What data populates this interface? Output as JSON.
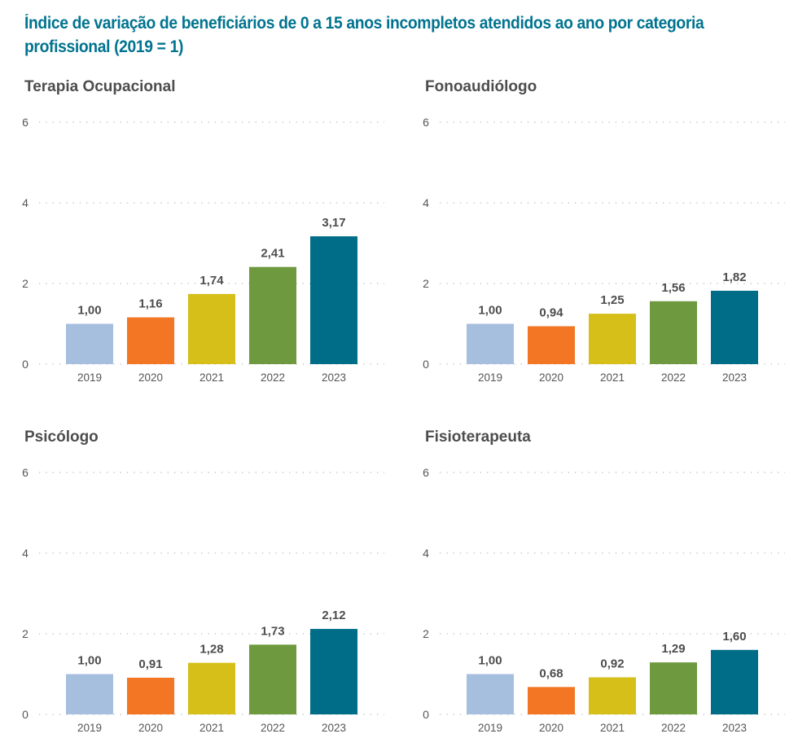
{
  "title": "Índice de variação de beneficiários de 0 a 15 anos incompletos atendidos ao ano por categoria profissional (2019 = 1)",
  "colors": {
    "2019": "#a6bfdf",
    "2020": "#f27623",
    "2021": "#d5bf18",
    "2022": "#6e993e",
    "2023": "#006d88",
    "title": "#00738f",
    "grid": "#bbbbbb"
  },
  "chart_data": [
    {
      "type": "bar",
      "title": "Terapia Ocupacional",
      "categories": [
        "2019",
        "2020",
        "2021",
        "2022",
        "2023"
      ],
      "values": [
        1.0,
        1.16,
        1.74,
        2.41,
        3.17
      ],
      "value_labels": [
        "1,00",
        "1,16",
        "1,74",
        "2,41",
        "3,17"
      ],
      "ylim": [
        0,
        6
      ],
      "yticks": [
        "0",
        "2",
        "4",
        "6"
      ],
      "grid": "dotted horizontal"
    },
    {
      "type": "bar",
      "title": "Fonoaudiólogo",
      "categories": [
        "2019",
        "2020",
        "2021",
        "2022",
        "2023"
      ],
      "values": [
        1.0,
        0.94,
        1.25,
        1.56,
        1.82
      ],
      "value_labels": [
        "1,00",
        "0,94",
        "1,25",
        "1,56",
        "1,82"
      ],
      "ylim": [
        0,
        6
      ],
      "yticks": [
        "0",
        "2",
        "4",
        "6"
      ],
      "grid": "dotted horizontal"
    },
    {
      "type": "bar",
      "title": "Psicólogo",
      "categories": [
        "2019",
        "2020",
        "2021",
        "2022",
        "2023"
      ],
      "values": [
        1.0,
        0.91,
        1.28,
        1.73,
        2.12
      ],
      "value_labels": [
        "1,00",
        "0,91",
        "1,28",
        "1,73",
        "2,12"
      ],
      "ylim": [
        0,
        6
      ],
      "yticks": [
        "0",
        "2",
        "4",
        "6"
      ],
      "grid": "dotted horizontal"
    },
    {
      "type": "bar",
      "title": "Fisioterapeuta",
      "categories": [
        "2019",
        "2020",
        "2021",
        "2022",
        "2023"
      ],
      "values": [
        1.0,
        0.68,
        0.92,
        1.29,
        1.6
      ],
      "value_labels": [
        "1,00",
        "0,68",
        "0,92",
        "1,29",
        "1,60"
      ],
      "ylim": [
        0,
        6
      ],
      "yticks": [
        "0",
        "2",
        "4",
        "6"
      ],
      "grid": "dotted horizontal"
    }
  ]
}
